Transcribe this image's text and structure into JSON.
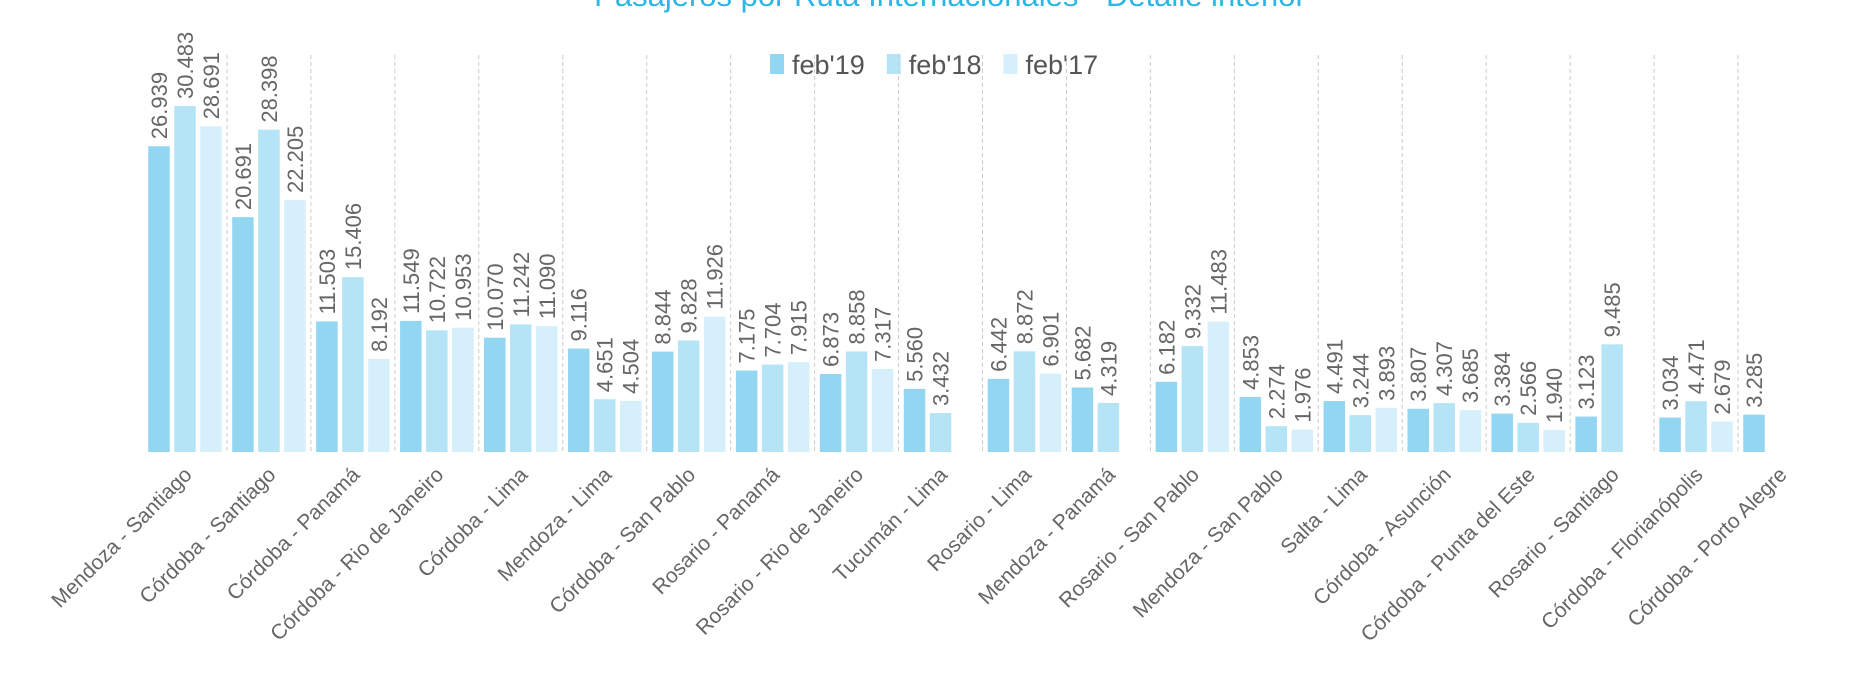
{
  "chart_data": {
    "type": "bar",
    "title": "Pasajeros por Ruta Internacionales - Detalle interior",
    "categories": [
      "Mendoza - Santiago",
      "Córdoba - Santiago",
      "Córdoba - Panamá",
      "Córdoba - Rio de Janeiro",
      "Córdoba - Lima",
      "Mendoza - Lima",
      "Córdoba - San Pablo",
      "Rosario - Panamá",
      "Rosario - Rio de Janeiro",
      "Tucumán - Lima",
      "Rosario - Lima",
      "Mendoza - Panamá",
      "Rosario - San Pablo",
      "Mendoza - San Pablo",
      "Salta - Lima",
      "Córdoba - Asunción",
      "Córdoba - Punta del Este",
      "Rosario - Santiago",
      "Córdoba - Florianópolis",
      "Córdoba - Porto Alegre"
    ],
    "series": [
      {
        "name": "feb'19",
        "color": "#92d6f2",
        "values": [
          26939,
          20691,
          11503,
          11549,
          10070,
          9116,
          8844,
          7175,
          6873,
          5560,
          6442,
          5682,
          6182,
          4853,
          4491,
          3807,
          3384,
          3123,
          3034,
          3285
        ],
        "value_labels": [
          "26.939",
          "20.691",
          "11.503",
          "11.549",
          "10.070",
          "9.116",
          "8.844",
          "7.175",
          "6.873",
          "5.560",
          "6.442",
          "5.682",
          "6.182",
          "4.853",
          "4.491",
          "3.807",
          "3.384",
          "3.123",
          "3.034",
          "3.285"
        ]
      },
      {
        "name": "feb'18",
        "color": "#b5e4f6",
        "values": [
          30483,
          28398,
          15406,
          10722,
          11242,
          4651,
          9828,
          7704,
          8858,
          3432,
          8872,
          4319,
          9332,
          2274,
          3244,
          4307,
          2566,
          9485,
          4471,
          null
        ],
        "value_labels": [
          "30.483",
          "28.398",
          "15.406",
          "10.722",
          "11.242",
          "4.651",
          "9.828",
          "7.704",
          "8.858",
          "3.432",
          "8.872",
          "4.319",
          "9.332",
          "2.274",
          "3.244",
          "4.307",
          "2.566",
          "9.485",
          "4.471",
          null
        ]
      },
      {
        "name": "feb'17",
        "color": "#d5f0fb",
        "values": [
          28691,
          22205,
          8192,
          10953,
          11090,
          4504,
          11926,
          7915,
          7317,
          null,
          6901,
          null,
          11483,
          1976,
          3893,
          3685,
          1940,
          null,
          2679,
          null
        ],
        "value_labels": [
          "28.691",
          "22.205",
          "8.192",
          "10.953",
          "11.090",
          "4.504",
          "11.926",
          "7.915",
          "7.317",
          null,
          "6.901",
          null,
          "11.483",
          "1.976",
          "3.893",
          "3.685",
          "1.940",
          null,
          "2.679",
          null
        ]
      }
    ],
    "legend": "top"
  }
}
